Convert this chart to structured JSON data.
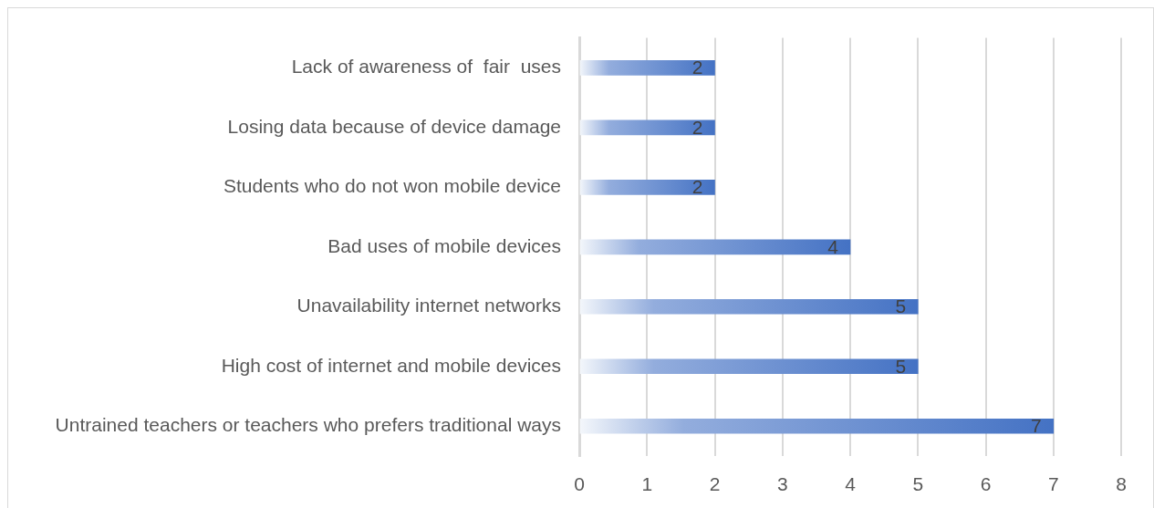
{
  "chart_data": {
    "type": "bar",
    "orientation": "horizontal",
    "categories": [
      "Lack of awareness of  fair  uses",
      "Losing data because of device damage",
      "Students who do not won mobile device",
      "Bad uses of mobile devices",
      "Unavailability internet networks",
      "High cost of internet and mobile devices",
      "Untrained teachers or teachers who prefers traditional ways"
    ],
    "values": [
      2,
      2,
      2,
      4,
      5,
      5,
      7
    ],
    "color": "#4472c4",
    "xlim": [
      0,
      8
    ],
    "xticks": [
      0,
      1,
      2,
      3,
      4,
      5,
      6,
      7,
      8
    ],
    "grid": "x",
    "data_labels": true
  }
}
